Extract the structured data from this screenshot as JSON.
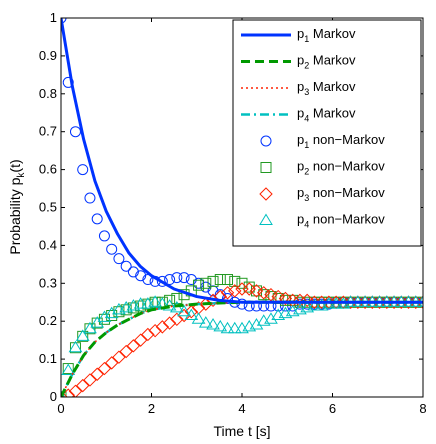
{
  "chart_data": {
    "type": "line",
    "xlabel": "Time t [s]",
    "ylabel": "Probability p_k(t)",
    "ylabel_main": "Probability p",
    "ylabel_sub": "k",
    "ylabel_tail": "(t)",
    "xlim": [
      0,
      8
    ],
    "ylim": [
      0,
      1
    ],
    "xticks": [
      0,
      2,
      4,
      6,
      8
    ],
    "yticks": [
      0,
      0.1,
      0.2,
      0.3,
      0.4,
      0.5,
      0.6,
      0.7,
      0.8,
      0.9,
      1
    ],
    "xtick_labels": [
      "0",
      "2",
      "4",
      "6",
      "8"
    ],
    "ytick_labels": [
      "0",
      "0.1",
      "0.2",
      "0.3",
      "0.4",
      "0.5",
      "0.6",
      "0.7",
      "0.8",
      "0.9",
      "1"
    ],
    "grid": false,
    "legend_position": "top-right",
    "series": [
      {
        "name": "p1 Markov",
        "label_main": "p",
        "label_sub": "1",
        "label_tail": " Markov",
        "style": "solid",
        "color": "#0033ff",
        "x": [
          0,
          0.25,
          0.5,
          0.75,
          1.0,
          1.25,
          1.5,
          1.75,
          2.0,
          2.5,
          3.0,
          3.5,
          4.0,
          5.0,
          6.0,
          7.0,
          8.0
        ],
        "y": [
          1.0,
          0.82,
          0.68,
          0.57,
          0.49,
          0.43,
          0.38,
          0.345,
          0.32,
          0.285,
          0.265,
          0.255,
          0.25,
          0.25,
          0.25,
          0.25,
          0.25
        ]
      },
      {
        "name": "p2 Markov",
        "label_main": "p",
        "label_sub": "2",
        "label_tail": " Markov",
        "style": "dashed",
        "color": "#009900",
        "x": [
          0,
          0.25,
          0.5,
          0.75,
          1.0,
          1.25,
          1.5,
          1.75,
          2.0,
          2.5,
          3.0,
          3.5,
          4.0,
          5.0,
          6.0,
          7.0,
          8.0
        ],
        "y": [
          0.0,
          0.06,
          0.11,
          0.145,
          0.17,
          0.19,
          0.205,
          0.22,
          0.23,
          0.24,
          0.245,
          0.248,
          0.25,
          0.25,
          0.25,
          0.25,
          0.25
        ]
      },
      {
        "name": "p3 Markov",
        "label_main": "p",
        "label_sub": "3",
        "label_tail": " Markov",
        "style": "dotted",
        "color": "#ff2200",
        "x": [
          0,
          0.25,
          0.5,
          0.75,
          1.0,
          1.25,
          1.5,
          1.75,
          2.0,
          2.5,
          3.0,
          3.5,
          4.0,
          5.0,
          6.0,
          7.0,
          8.0
        ],
        "y": [
          0.0,
          0.06,
          0.11,
          0.145,
          0.17,
          0.19,
          0.205,
          0.22,
          0.23,
          0.24,
          0.245,
          0.248,
          0.25,
          0.25,
          0.25,
          0.25,
          0.25
        ]
      },
      {
        "name": "p4 Markov",
        "label_main": "p",
        "label_sub": "4",
        "label_tail": " Markov",
        "style": "dashdot",
        "color": "#00c0c0",
        "x": [
          0,
          0.25,
          0.5,
          0.75,
          1.0,
          1.25,
          1.5,
          1.75,
          2.0,
          2.5,
          3.0,
          3.5,
          4.0,
          5.0,
          6.0,
          7.0,
          8.0
        ],
        "y": [
          0.0,
          0.06,
          0.11,
          0.145,
          0.17,
          0.19,
          0.205,
          0.22,
          0.23,
          0.24,
          0.245,
          0.248,
          0.25,
          0.25,
          0.25,
          0.25,
          0.25
        ]
      },
      {
        "name": "p1 non-Markov",
        "label_main": "p",
        "label_sub": "1",
        "label_tail": " non−Markov",
        "style": "marker",
        "marker": "circle",
        "color": "#0033ff",
        "x": [
          0,
          0.16,
          0.32,
          0.48,
          0.64,
          0.8,
          0.96,
          1.12,
          1.28,
          1.44,
          1.6,
          1.76,
          1.92,
          2.08,
          2.24,
          2.4,
          2.56,
          2.72,
          2.88,
          3.04,
          3.2,
          3.36,
          3.52,
          3.68,
          3.84,
          4.0,
          4.16,
          4.32,
          4.48,
          4.64,
          4.8,
          4.96,
          5.12,
          5.28,
          5.44,
          5.6,
          5.76,
          5.92,
          6.08,
          6.24,
          6.4,
          6.56,
          6.72,
          6.88,
          7.04,
          7.2,
          7.36,
          7.52,
          7.68,
          7.84,
          8.0
        ],
        "y": [
          1.0,
          0.83,
          0.7,
          0.6,
          0.525,
          0.47,
          0.425,
          0.39,
          0.365,
          0.345,
          0.33,
          0.32,
          0.31,
          0.305,
          0.305,
          0.31,
          0.315,
          0.315,
          0.31,
          0.3,
          0.29,
          0.28,
          0.27,
          0.26,
          0.25,
          0.245,
          0.24,
          0.24,
          0.24,
          0.24,
          0.24,
          0.24,
          0.24,
          0.245,
          0.245,
          0.245,
          0.245,
          0.245,
          0.25,
          0.25,
          0.25,
          0.25,
          0.25,
          0.25,
          0.25,
          0.25,
          0.25,
          0.25,
          0.25,
          0.25,
          0.25
        ]
      },
      {
        "name": "p2 non-Markov",
        "label_main": "p",
        "label_sub": "2",
        "label_tail": " non−Markov",
        "style": "marker",
        "marker": "square",
        "color": "#229922",
        "x": [
          0,
          0.16,
          0.32,
          0.48,
          0.64,
          0.8,
          0.96,
          1.12,
          1.28,
          1.44,
          1.6,
          1.76,
          1.92,
          2.08,
          2.24,
          2.4,
          2.56,
          2.72,
          2.88,
          3.04,
          3.2,
          3.36,
          3.52,
          3.68,
          3.84,
          4.0,
          4.16,
          4.32,
          4.48,
          4.64,
          4.8,
          4.96,
          5.12,
          5.28,
          5.44,
          5.6,
          5.76,
          5.92,
          6.08,
          6.24,
          6.4,
          6.56,
          6.72,
          6.88,
          7.04,
          7.2,
          7.36,
          7.52,
          7.68,
          7.84,
          8.0
        ],
        "y": [
          0.0,
          0.075,
          0.13,
          0.16,
          0.18,
          0.195,
          0.205,
          0.215,
          0.225,
          0.23,
          0.235,
          0.24,
          0.245,
          0.25,
          0.25,
          0.255,
          0.26,
          0.27,
          0.28,
          0.295,
          0.3,
          0.305,
          0.31,
          0.31,
          0.305,
          0.3,
          0.29,
          0.28,
          0.27,
          0.265,
          0.26,
          0.255,
          0.255,
          0.25,
          0.25,
          0.25,
          0.25,
          0.25,
          0.25,
          0.25,
          0.25,
          0.25,
          0.25,
          0.25,
          0.25,
          0.25,
          0.25,
          0.25,
          0.25,
          0.25,
          0.25
        ]
      },
      {
        "name": "p3 non-Markov",
        "label_main": "p",
        "label_sub": "3",
        "label_tail": " non−Markov",
        "style": "marker",
        "marker": "diamond",
        "color": "#ff2200",
        "x": [
          0,
          0.16,
          0.32,
          0.48,
          0.64,
          0.8,
          0.96,
          1.12,
          1.28,
          1.44,
          1.6,
          1.76,
          1.92,
          2.08,
          2.24,
          2.4,
          2.56,
          2.72,
          2.88,
          3.04,
          3.2,
          3.36,
          3.52,
          3.68,
          3.84,
          4.0,
          4.16,
          4.32,
          4.48,
          4.64,
          4.8,
          4.96,
          5.12,
          5.28,
          5.44,
          5.6,
          5.76,
          5.92,
          6.08,
          6.24,
          6.4,
          6.56,
          6.72,
          6.88,
          7.04,
          7.2,
          7.36,
          7.52,
          7.68,
          7.84,
          8.0
        ],
        "y": [
          0.0,
          0.005,
          0.015,
          0.03,
          0.045,
          0.06,
          0.075,
          0.09,
          0.105,
          0.12,
          0.135,
          0.15,
          0.165,
          0.175,
          0.185,
          0.195,
          0.205,
          0.215,
          0.225,
          0.235,
          0.245,
          0.255,
          0.265,
          0.275,
          0.28,
          0.285,
          0.285,
          0.28,
          0.275,
          0.27,
          0.265,
          0.26,
          0.255,
          0.255,
          0.255,
          0.25,
          0.25,
          0.25,
          0.25,
          0.25,
          0.25,
          0.25,
          0.25,
          0.25,
          0.25,
          0.25,
          0.25,
          0.25,
          0.25,
          0.25,
          0.25
        ]
      },
      {
        "name": "p4 non-Markov",
        "label_main": "p",
        "label_sub": "4",
        "label_tail": " non−Markov",
        "style": "marker",
        "marker": "triangle",
        "color": "#00c0c0",
        "x": [
          0,
          0.16,
          0.32,
          0.48,
          0.64,
          0.8,
          0.96,
          1.12,
          1.28,
          1.44,
          1.6,
          1.76,
          1.92,
          2.08,
          2.24,
          2.4,
          2.56,
          2.72,
          2.88,
          3.04,
          3.2,
          3.36,
          3.52,
          3.68,
          3.84,
          4.0,
          4.16,
          4.32,
          4.48,
          4.64,
          4.8,
          4.96,
          5.12,
          5.28,
          5.44,
          5.6,
          5.76,
          5.92,
          6.08,
          6.24,
          6.4,
          6.56,
          6.72,
          6.88,
          7.04,
          7.2,
          7.36,
          7.52,
          7.68,
          7.84,
          8.0
        ],
        "y": [
          0.0,
          0.07,
          0.13,
          0.16,
          0.18,
          0.195,
          0.21,
          0.22,
          0.23,
          0.235,
          0.24,
          0.245,
          0.245,
          0.25,
          0.245,
          0.24,
          0.235,
          0.225,
          0.215,
          0.205,
          0.195,
          0.19,
          0.185,
          0.18,
          0.18,
          0.18,
          0.185,
          0.19,
          0.2,
          0.205,
          0.215,
          0.22,
          0.225,
          0.23,
          0.235,
          0.24,
          0.24,
          0.245,
          0.245,
          0.245,
          0.25,
          0.25,
          0.25,
          0.25,
          0.25,
          0.25,
          0.25,
          0.25,
          0.25,
          0.25,
          0.25
        ]
      }
    ]
  }
}
